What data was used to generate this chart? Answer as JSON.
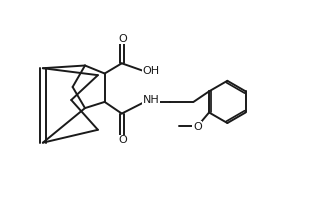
{
  "bg_color": "#ffffff",
  "line_color": "#1a1a1a",
  "line_width": 1.4,
  "font_size": 7.5,
  "figsize": [
    3.2,
    1.98
  ],
  "dpi": 100,
  "xlim": [
    -2.0,
    5.8
  ],
  "ylim": [
    -2.8,
    2.6
  ]
}
